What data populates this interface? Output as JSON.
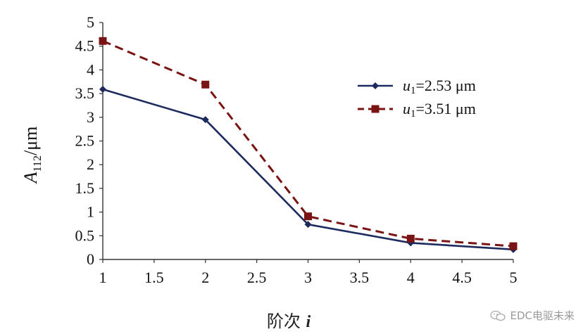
{
  "chart_data": {
    "type": "line",
    "xlabel_main": "阶次",
    "xlabel_var": "i",
    "ylabel_main": "A",
    "ylabel_sub": "112",
    "ylabel_unit": "/μm",
    "xlim": [
      1,
      5
    ],
    "ylim": [
      0,
      5
    ],
    "xticks": [
      "1",
      "1.5",
      "2",
      "2.5",
      "3",
      "3.5",
      "4",
      "4.5",
      "5"
    ],
    "yticks": [
      "0",
      "0.5",
      "1",
      "1.5",
      "2",
      "2.5",
      "3",
      "3.5",
      "4",
      "4.5",
      "5"
    ],
    "grid": false,
    "legend_position": "right",
    "x": [
      1,
      2,
      3,
      4,
      5
    ],
    "series": [
      {
        "name": "u1=2.53 μm",
        "name_var": "u",
        "name_sub": "1",
        "name_rest": "=2.53 μm",
        "values": [
          3.59,
          2.95,
          0.74,
          0.35,
          0.21
        ],
        "color": "#1c2a5e",
        "style": "solid",
        "marker": "diamond"
      },
      {
        "name": "u1=3.51 μm",
        "name_var": "u",
        "name_sub": "1",
        "name_rest": "=3.51 μm",
        "values": [
          4.61,
          3.69,
          0.91,
          0.44,
          0.28
        ],
        "color": "#7a1414",
        "style": "dashed",
        "marker": "square"
      }
    ]
  },
  "watermark": {
    "text": "EDC电驱未来",
    "icon": "wechat-icon"
  }
}
